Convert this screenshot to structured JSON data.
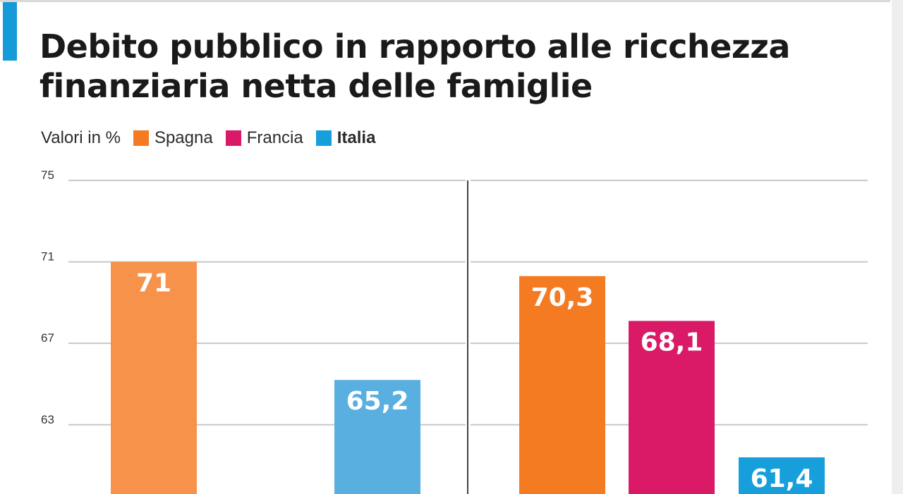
{
  "colors": {
    "accent": "#159bd7",
    "spagna_light": "#f7924a",
    "spagna": "#f47b22",
    "francia": "#da1a67",
    "italia_light": "#5aafe1",
    "italia": "#169fda",
    "grid": "#c8c8c8"
  },
  "chart_data": {
    "type": "bar",
    "title": "Debito pubblico in rapporto alle ricchezza finanziaria netta delle famiglie",
    "unit_label": "Valori in %",
    "ylim": [
      59.6,
      75
    ],
    "yticks": [
      75,
      71,
      67,
      63
    ],
    "grid": true,
    "legend": [
      {
        "name": "Spagna",
        "color": "#f47b22",
        "bold": false
      },
      {
        "name": "Francia",
        "color": "#da1a67",
        "bold": false
      },
      {
        "name": "Italia",
        "color": "#169fda",
        "bold": true
      }
    ],
    "groups": [
      {
        "bars": [
          {
            "series": "Spagna",
            "value": 71,
            "label": "71",
            "color": "#f7924a"
          },
          {
            "series": "Italia",
            "value": 65.2,
            "label": "65,2",
            "color": "#5aafe1"
          }
        ]
      },
      {
        "bars": [
          {
            "series": "Spagna",
            "value": 70.3,
            "label": "70,3",
            "color": "#f47b22"
          },
          {
            "series": "Francia",
            "value": 68.1,
            "label": "68,1",
            "color": "#da1a67"
          },
          {
            "series": "Italia",
            "value": 61.4,
            "label": "61,4",
            "color": "#169fda"
          }
        ]
      }
    ]
  }
}
